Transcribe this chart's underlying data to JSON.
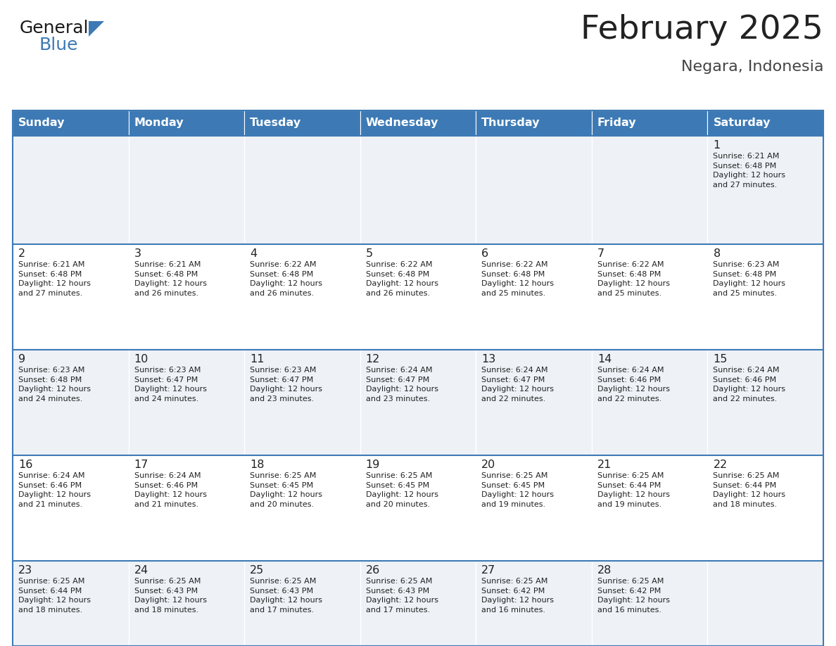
{
  "title": "February 2025",
  "subtitle": "Negara, Indonesia",
  "header_bg": "#3d7ab5",
  "header_text_color": "#ffffff",
  "cell_bg_odd": "#eef2f7",
  "cell_bg_even": "#ffffff",
  "border_color": "#3d7ab5",
  "text_color": "#222222",
  "day_headers": [
    "Sunday",
    "Monday",
    "Tuesday",
    "Wednesday",
    "Thursday",
    "Friday",
    "Saturday"
  ],
  "calendar": [
    [
      null,
      null,
      null,
      null,
      null,
      null,
      {
        "day": "1",
        "sunrise": "6:21 AM",
        "sunset": "6:48 PM",
        "daylight": "12 hours\nand 27 minutes."
      }
    ],
    [
      {
        "day": "2",
        "sunrise": "6:21 AM",
        "sunset": "6:48 PM",
        "daylight": "12 hours\nand 27 minutes."
      },
      {
        "day": "3",
        "sunrise": "6:21 AM",
        "sunset": "6:48 PM",
        "daylight": "12 hours\nand 26 minutes."
      },
      {
        "day": "4",
        "sunrise": "6:22 AM",
        "sunset": "6:48 PM",
        "daylight": "12 hours\nand 26 minutes."
      },
      {
        "day": "5",
        "sunrise": "6:22 AM",
        "sunset": "6:48 PM",
        "daylight": "12 hours\nand 26 minutes."
      },
      {
        "day": "6",
        "sunrise": "6:22 AM",
        "sunset": "6:48 PM",
        "daylight": "12 hours\nand 25 minutes."
      },
      {
        "day": "7",
        "sunrise": "6:22 AM",
        "sunset": "6:48 PM",
        "daylight": "12 hours\nand 25 minutes."
      },
      {
        "day": "8",
        "sunrise": "6:23 AM",
        "sunset": "6:48 PM",
        "daylight": "12 hours\nand 25 minutes."
      }
    ],
    [
      {
        "day": "9",
        "sunrise": "6:23 AM",
        "sunset": "6:48 PM",
        "daylight": "12 hours\nand 24 minutes."
      },
      {
        "day": "10",
        "sunrise": "6:23 AM",
        "sunset": "6:47 PM",
        "daylight": "12 hours\nand 24 minutes."
      },
      {
        "day": "11",
        "sunrise": "6:23 AM",
        "sunset": "6:47 PM",
        "daylight": "12 hours\nand 23 minutes."
      },
      {
        "day": "12",
        "sunrise": "6:24 AM",
        "sunset": "6:47 PM",
        "daylight": "12 hours\nand 23 minutes."
      },
      {
        "day": "13",
        "sunrise": "6:24 AM",
        "sunset": "6:47 PM",
        "daylight": "12 hours\nand 22 minutes."
      },
      {
        "day": "14",
        "sunrise": "6:24 AM",
        "sunset": "6:46 PM",
        "daylight": "12 hours\nand 22 minutes."
      },
      {
        "day": "15",
        "sunrise": "6:24 AM",
        "sunset": "6:46 PM",
        "daylight": "12 hours\nand 22 minutes."
      }
    ],
    [
      {
        "day": "16",
        "sunrise": "6:24 AM",
        "sunset": "6:46 PM",
        "daylight": "12 hours\nand 21 minutes."
      },
      {
        "day": "17",
        "sunrise": "6:24 AM",
        "sunset": "6:46 PM",
        "daylight": "12 hours\nand 21 minutes."
      },
      {
        "day": "18",
        "sunrise": "6:25 AM",
        "sunset": "6:45 PM",
        "daylight": "12 hours\nand 20 minutes."
      },
      {
        "day": "19",
        "sunrise": "6:25 AM",
        "sunset": "6:45 PM",
        "daylight": "12 hours\nand 20 minutes."
      },
      {
        "day": "20",
        "sunrise": "6:25 AM",
        "sunset": "6:45 PM",
        "daylight": "12 hours\nand 19 minutes."
      },
      {
        "day": "21",
        "sunrise": "6:25 AM",
        "sunset": "6:44 PM",
        "daylight": "12 hours\nand 19 minutes."
      },
      {
        "day": "22",
        "sunrise": "6:25 AM",
        "sunset": "6:44 PM",
        "daylight": "12 hours\nand 18 minutes."
      }
    ],
    [
      {
        "day": "23",
        "sunrise": "6:25 AM",
        "sunset": "6:44 PM",
        "daylight": "12 hours\nand 18 minutes."
      },
      {
        "day": "24",
        "sunrise": "6:25 AM",
        "sunset": "6:43 PM",
        "daylight": "12 hours\nand 18 minutes."
      },
      {
        "day": "25",
        "sunrise": "6:25 AM",
        "sunset": "6:43 PM",
        "daylight": "12 hours\nand 17 minutes."
      },
      {
        "day": "26",
        "sunrise": "6:25 AM",
        "sunset": "6:43 PM",
        "daylight": "12 hours\nand 17 minutes."
      },
      {
        "day": "27",
        "sunrise": "6:25 AM",
        "sunset": "6:42 PM",
        "daylight": "12 hours\nand 16 minutes."
      },
      {
        "day": "28",
        "sunrise": "6:25 AM",
        "sunset": "6:42 PM",
        "daylight": "12 hours\nand 16 minutes."
      },
      null
    ]
  ],
  "logo_general_color": "#1a1a1a",
  "logo_blue_color": "#3d7ab5",
  "logo_triangle_color": "#3d7ab5"
}
